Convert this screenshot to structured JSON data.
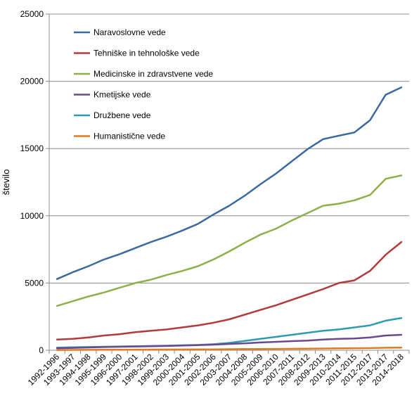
{
  "chart_data": {
    "type": "line",
    "title": "",
    "xlabel": "",
    "ylabel": "število",
    "ylim": [
      0,
      25000
    ],
    "yticks": [
      0,
      5000,
      10000,
      15000,
      20000,
      25000
    ],
    "grid": true,
    "legend_position": "top-left",
    "categories": [
      "1992-1996",
      "1993-1997",
      "1994-1998",
      "1995-1999",
      "1996-2000",
      "1997-2001",
      "1998-2002",
      "1999-2003",
      "2000-2004",
      "2001-2005",
      "2002-2006",
      "2003-2007",
      "2004-2008",
      "2005-2009",
      "2006-2010",
      "2007-2011",
      "2008-2012",
      "2009-2013",
      "2010-2014",
      "2011-2015",
      "2012-2017",
      "2013-2017",
      "2014-2018"
    ],
    "series": [
      {
        "name": "Naravoslovne vede",
        "color": "#3b6aa0",
        "values": [
          5300,
          5800,
          6250,
          6750,
          7150,
          7600,
          8050,
          8450,
          8900,
          9400,
          10100,
          10750,
          11500,
          12350,
          13150,
          14050,
          14950,
          15700,
          15950,
          16200,
          17100,
          19000,
          19550
        ]
      },
      {
        "name": "Tehniške in tehnološke vede",
        "color": "#b33a3a",
        "values": [
          800,
          850,
          950,
          1100,
          1200,
          1350,
          1450,
          1550,
          1700,
          1850,
          2050,
          2300,
          2650,
          3000,
          3350,
          3750,
          4150,
          4550,
          5000,
          5200,
          5900,
          7100,
          8050
        ]
      },
      {
        "name": "Medicinske in zdravstvene vede",
        "color": "#8cb04a",
        "values": [
          3300,
          3650,
          4000,
          4300,
          4650,
          5000,
          5250,
          5600,
          5900,
          6250,
          6750,
          7350,
          8000,
          8600,
          9050,
          9650,
          10200,
          10750,
          10900,
          11150,
          11550,
          12750,
          13000
        ]
      },
      {
        "name": "Kmetijske vede",
        "color": "#6a4a8a",
        "values": [
          150,
          180,
          210,
          240,
          260,
          280,
          300,
          320,
          350,
          380,
          420,
          470,
          520,
          580,
          630,
          680,
          720,
          800,
          850,
          880,
          950,
          1100,
          1150
        ]
      },
      {
        "name": "Družbene vede",
        "color": "#2f9bb3",
        "values": [
          200,
          220,
          240,
          260,
          280,
          300,
          320,
          340,
          370,
          400,
          450,
          550,
          700,
          850,
          1000,
          1150,
          1300,
          1450,
          1550,
          1700,
          1850,
          2200,
          2400
        ]
      },
      {
        "name": "Humanistične vede",
        "color": "#e07b22",
        "values": [
          20,
          25,
          30,
          35,
          40,
          45,
          50,
          55,
          60,
          65,
          70,
          80,
          90,
          95,
          100,
          110,
          120,
          130,
          140,
          150,
          160,
          190,
          200
        ]
      }
    ]
  }
}
